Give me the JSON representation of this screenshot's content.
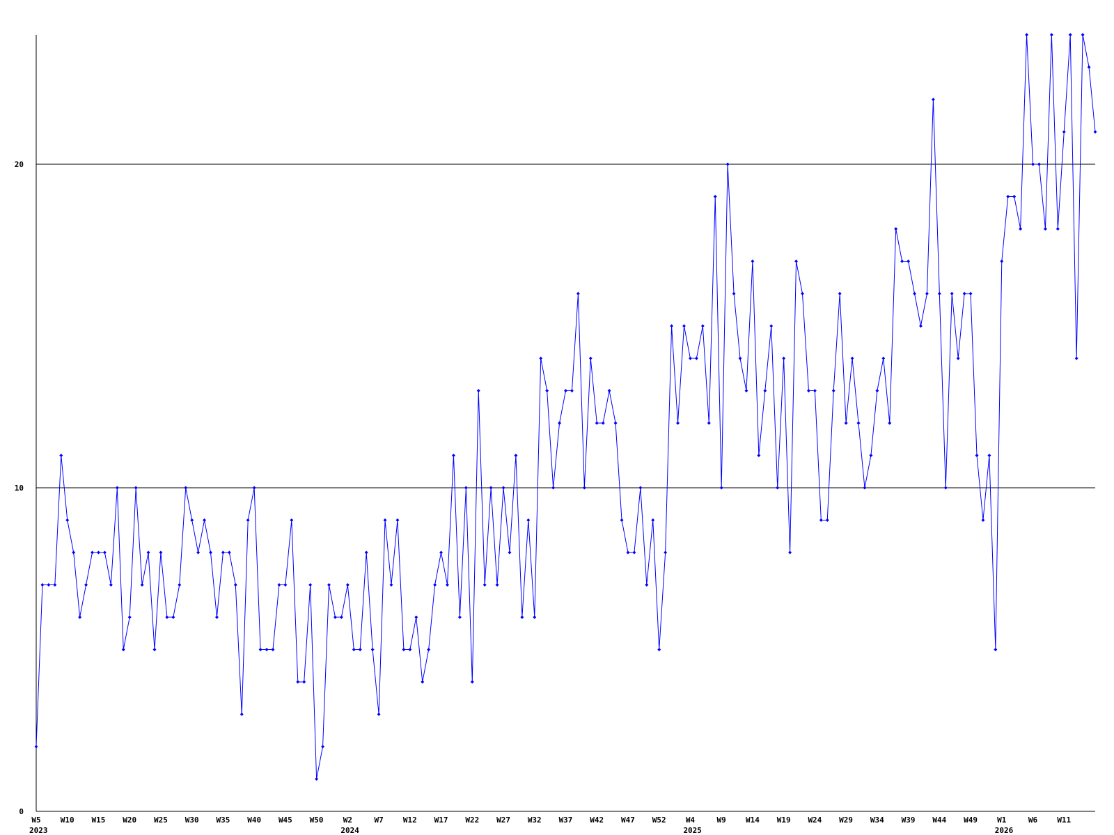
{
  "chart_data": {
    "type": "line",
    "color": "#0000ff",
    "grid": true,
    "grid_color": "#000000",
    "ylim": [
      0,
      24
    ],
    "yticks": [
      0,
      10,
      20
    ],
    "values": [
      2,
      7,
      7,
      7,
      11,
      9,
      8,
      6,
      7,
      8,
      8,
      8,
      7,
      10,
      5,
      6,
      10,
      7,
      8,
      5,
      8,
      6,
      6,
      7,
      10,
      9,
      8,
      9,
      8,
      6,
      8,
      8,
      7,
      3,
      9,
      10,
      5,
      5,
      5,
      7,
      7,
      9,
      4,
      4,
      7,
      1,
      2,
      7,
      6,
      6,
      7,
      5,
      5,
      8,
      5,
      3,
      9,
      7,
      9,
      5,
      5,
      6,
      4,
      5,
      7,
      8,
      7,
      11,
      6,
      10,
      4,
      13,
      7,
      10,
      7,
      10,
      8,
      11,
      6,
      9,
      6,
      14,
      13,
      10,
      12,
      13,
      13,
      16,
      10,
      14,
      12,
      12,
      13,
      12,
      9,
      8,
      8,
      10,
      7,
      9,
      5,
      8,
      15,
      12,
      15,
      14,
      14,
      15,
      12,
      19,
      10,
      20,
      16,
      14,
      13,
      17,
      11,
      13,
      15,
      10,
      14,
      8,
      17,
      16,
      13,
      13,
      9,
      9,
      13,
      16,
      12,
      14,
      12,
      10,
      11,
      13,
      14,
      12,
      18,
      17,
      17,
      16,
      15,
      16,
      22,
      16,
      10,
      16,
      14,
      16,
      16,
      11,
      9,
      11,
      5,
      17,
      19,
      19,
      18,
      24,
      20,
      20,
      18,
      24,
      18,
      21,
      24,
      14,
      24,
      23,
      21
    ],
    "categories": [
      "W5",
      null,
      null,
      null,
      null,
      "W10",
      null,
      null,
      null,
      null,
      "W15",
      null,
      null,
      null,
      null,
      "W20",
      null,
      null,
      null,
      null,
      "W25",
      null,
      null,
      null,
      null,
      "W30",
      null,
      null,
      null,
      null,
      "W35",
      null,
      null,
      null,
      null,
      "W40",
      null,
      null,
      null,
      null,
      "W45",
      null,
      null,
      null,
      null,
      "W50",
      null,
      null,
      null,
      null,
      "W2",
      null,
      null,
      null,
      null,
      "W7",
      null,
      null,
      null,
      null,
      "W12",
      null,
      null,
      null,
      null,
      "W17",
      null,
      null,
      null,
      null,
      "W22",
      null,
      null,
      null,
      null,
      "W27",
      null,
      null,
      null,
      null,
      "W32",
      null,
      null,
      null,
      null,
      "W37",
      null,
      null,
      null,
      null,
      "W42",
      null,
      null,
      null,
      null,
      "W47",
      null,
      null,
      null,
      null,
      "W52",
      null,
      null,
      null,
      null,
      "W4",
      null,
      null,
      null,
      null,
      "W9",
      null,
      null,
      null,
      null,
      "W14",
      null,
      null,
      null,
      null,
      "W19",
      null,
      null,
      null,
      null,
      "W24",
      null,
      null,
      null,
      null,
      "W29",
      null,
      null,
      null,
      null,
      "W34",
      null,
      null,
      null,
      null,
      "W39",
      null,
      null,
      null,
      null,
      "W44",
      null,
      null,
      null,
      null,
      "W49",
      null,
      null,
      null,
      null,
      "W1",
      null,
      null,
      null,
      null,
      "W6",
      null,
      null,
      null,
      null,
      "W11",
      null,
      null,
      null,
      null,
      null
    ],
    "category_years": [
      "2023",
      null,
      null,
      null,
      null,
      null,
      null,
      null,
      null,
      null,
      null,
      null,
      null,
      null,
      null,
      null,
      null,
      null,
      null,
      null,
      null,
      null,
      null,
      null,
      null,
      null,
      null,
      null,
      null,
      null,
      null,
      null,
      null,
      null,
      null,
      null,
      null,
      null,
      null,
      null,
      null,
      null,
      null,
      null,
      null,
      null,
      null,
      null,
      null,
      null,
      "2024",
      null,
      null,
      null,
      null,
      null,
      null,
      null,
      null,
      null,
      null,
      null,
      null,
      null,
      null,
      null,
      null,
      null,
      null,
      null,
      null,
      null,
      null,
      null,
      null,
      null,
      null,
      null,
      null,
      null,
      null,
      null,
      null,
      null,
      null,
      null,
      null,
      null,
      null,
      null,
      null,
      null,
      null,
      null,
      null,
      null,
      null,
      null,
      null,
      null,
      null,
      null,
      null,
      null,
      null,
      "2025",
      null,
      null,
      null,
      null,
      null,
      null,
      null,
      null,
      null,
      null,
      null,
      null,
      null,
      null,
      null,
      null,
      null,
      null,
      null,
      null,
      null,
      null,
      null,
      null,
      null,
      null,
      null,
      null,
      null,
      null,
      null,
      null,
      null,
      null,
      null,
      null,
      null,
      null,
      null,
      null,
      null,
      null,
      null,
      null,
      null,
      null,
      null,
      null,
      null,
      "2026",
      null,
      null,
      null,
      null,
      null,
      null,
      null,
      null,
      null,
      null,
      null,
      null,
      null,
      null,
      null
    ]
  }
}
